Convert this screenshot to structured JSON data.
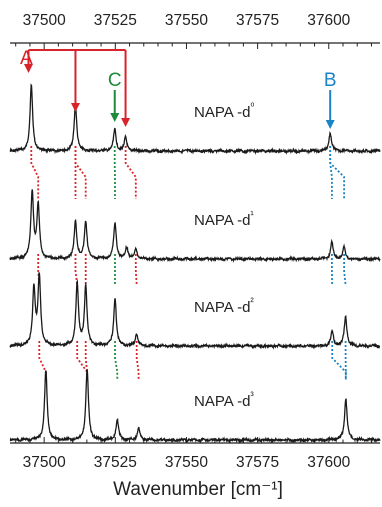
{
  "chart_data": {
    "type": "line",
    "xlabel": "Wavenumber [cm⁻¹]",
    "xlim": [
      37488,
      37618
    ],
    "x_ticks": [
      37500,
      37525,
      37550,
      37575,
      37600
    ],
    "top_ticks": [
      37500,
      37525,
      37550,
      37575,
      37600
    ],
    "series": [
      {
        "name": "NAPA-d⁰",
        "peaks": [
          {
            "x": 37495.5,
            "h": 0.8
          },
          {
            "x": 37511.0,
            "h": 0.56
          },
          {
            "x": 37524.8,
            "h": 0.26
          },
          {
            "x": 37528.6,
            "h": 0.16
          },
          {
            "x": 37600.5,
            "h": 0.22
          }
        ]
      },
      {
        "name": "NAPA-d¹",
        "peaks": [
          {
            "x": 37495.8,
            "h": 0.82
          },
          {
            "x": 37497.9,
            "h": 0.64
          },
          {
            "x": 37511.0,
            "h": 0.46
          },
          {
            "x": 37514.6,
            "h": 0.46
          },
          {
            "x": 37524.9,
            "h": 0.44
          },
          {
            "x": 37529.0,
            "h": 0.14
          },
          {
            "x": 37532.2,
            "h": 0.12
          },
          {
            "x": 37601.1,
            "h": 0.2
          },
          {
            "x": 37605.4,
            "h": 0.14
          }
        ]
      },
      {
        "name": "NAPA-d²",
        "peaks": [
          {
            "x": 37496.4,
            "h": 0.7
          },
          {
            "x": 37498.3,
            "h": 0.84
          },
          {
            "x": 37511.6,
            "h": 0.76
          },
          {
            "x": 37514.6,
            "h": 0.72
          },
          {
            "x": 37524.9,
            "h": 0.58
          },
          {
            "x": 37532.5,
            "h": 0.15
          },
          {
            "x": 37601.2,
            "h": 0.18
          },
          {
            "x": 37605.9,
            "h": 0.36
          }
        ]
      },
      {
        "name": "NAPA-d³",
        "peaks": [
          {
            "x": 37500.6,
            "h": 0.84
          },
          {
            "x": 37515.1,
            "h": 0.86
          },
          {
            "x": 37525.7,
            "h": 0.24
          },
          {
            "x": 37533.2,
            "h": 0.15
          },
          {
            "x": 37606.0,
            "h": 0.5
          }
        ]
      }
    ],
    "assignments": [
      {
        "label": "A",
        "color": "#d8232a",
        "targets": [
          37494.5,
          37511.0,
          37528.6
        ]
      },
      {
        "label": "C",
        "color": "#1e8a3c",
        "targets": [
          37524.8
        ]
      },
      {
        "label": "B",
        "color": "#1a84c7",
        "targets": [
          37600.5
        ]
      }
    ],
    "colors": {
      "trace": "#1a1a1a",
      "A": "#d8232a",
      "B": "#1a84c7",
      "C": "#1e8a3c"
    }
  }
}
